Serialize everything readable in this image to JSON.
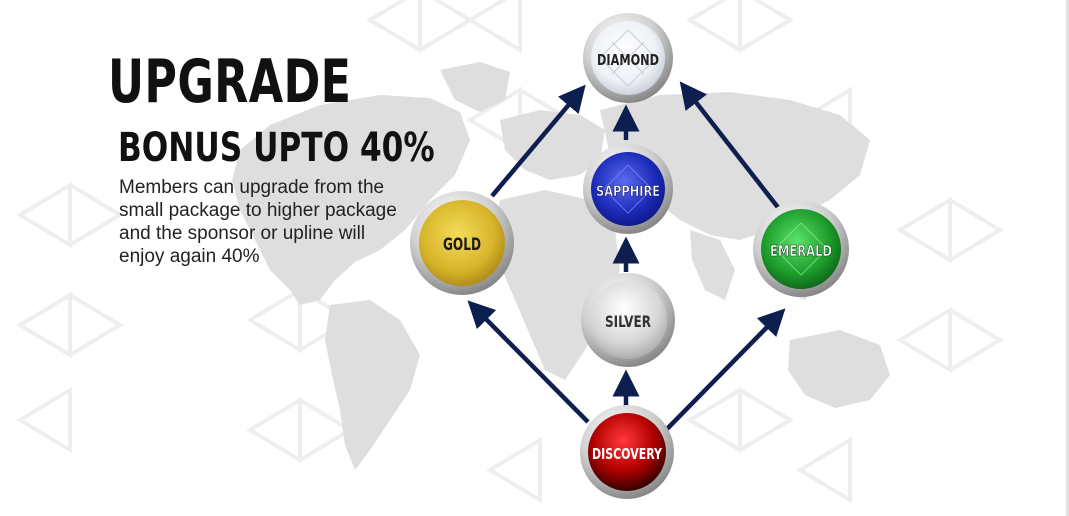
{
  "heading": {
    "title": "UPGRADE",
    "subtitle": "BONUS UPTO 40%",
    "description": "Members can upgrade from the small package to higher package and the sponsor or upline will enjoy again 40%"
  },
  "packages": [
    {
      "id": "diamond",
      "label": "DIAMOND",
      "gem": "diamond"
    },
    {
      "id": "sapphire",
      "label": "SAPPHIRE",
      "gem": "sapphire"
    },
    {
      "id": "gold",
      "label": "GOLD",
      "gem": "gold"
    },
    {
      "id": "emerald",
      "label": "EMERALD",
      "gem": "emerald"
    },
    {
      "id": "silver",
      "label": "SILVER",
      "gem": "silver"
    },
    {
      "id": "discovery",
      "label": "DISCOVERY",
      "gem": "ruby"
    }
  ],
  "colors": {
    "arrow": "#0d1f4f",
    "gold": "#d8b52a",
    "sapphire": "#1b2ab8",
    "emerald": "#1c9a2a",
    "silver": "#cfcfcf",
    "ruby": "#b30000",
    "diamond": "#f2f4f7"
  }
}
